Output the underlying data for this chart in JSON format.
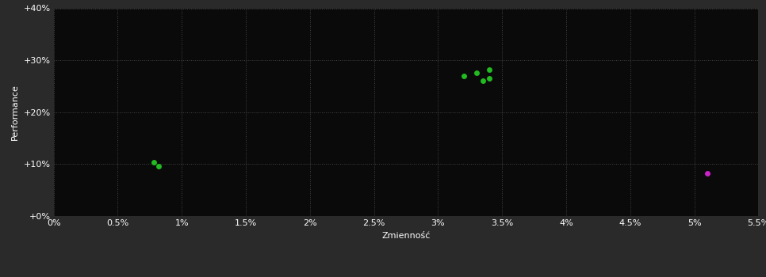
{
  "background_color": "#2a2a2a",
  "plot_bg_color": "#0a0a0a",
  "grid_color": "#444444",
  "text_color": "#ffffff",
  "xlabel": "Zmienność",
  "ylabel": "Performance",
  "xlim": [
    0.0,
    0.055
  ],
  "ylim": [
    0.0,
    0.4
  ],
  "xticks": [
    0.0,
    0.005,
    0.01,
    0.015,
    0.02,
    0.025,
    0.03,
    0.035,
    0.04,
    0.045,
    0.05,
    0.055
  ],
  "yticks": [
    0.0,
    0.1,
    0.2,
    0.3,
    0.4
  ],
  "green_points": [
    [
      0.0078,
      0.103
    ],
    [
      0.0082,
      0.096
    ],
    [
      0.032,
      0.27
    ],
    [
      0.033,
      0.276
    ],
    [
      0.034,
      0.282
    ],
    [
      0.034,
      0.265
    ],
    [
      0.0335,
      0.26
    ]
  ],
  "magenta_points": [
    [
      0.051,
      0.083
    ]
  ],
  "green_color": "#22bb22",
  "magenta_color": "#cc22cc",
  "marker_size": 5,
  "tick_fontsize": 8,
  "label_fontsize": 8
}
